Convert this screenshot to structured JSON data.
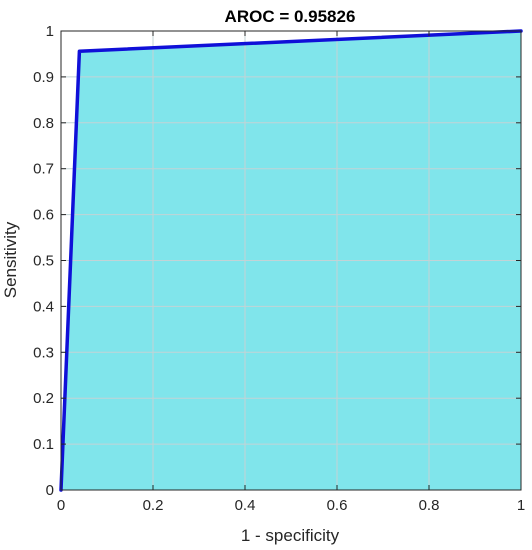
{
  "chart_data": {
    "type": "area",
    "title": "AROC = 0.95826",
    "xlabel": "1 - specificity",
    "ylabel": "Sensitivity",
    "xlim": [
      0,
      1
    ],
    "ylim": [
      0,
      1
    ],
    "x_ticks": [
      0,
      0.2,
      0.4,
      0.6,
      0.8,
      1
    ],
    "x_tick_labels": [
      "0",
      "0.2",
      "0.4",
      "0.6",
      "0.8",
      "1"
    ],
    "y_ticks": [
      0,
      0.1,
      0.2,
      0.3,
      0.4,
      0.5,
      0.6,
      0.7,
      0.8,
      0.9,
      1
    ],
    "y_tick_labels": [
      "0",
      "0.1",
      "0.2",
      "0.3",
      "0.4",
      "0.5",
      "0.6",
      "0.7",
      "0.8",
      "0.9",
      "1"
    ],
    "grid": true,
    "series": [
      {
        "x": [
          0,
          0.04,
          1
        ],
        "y": [
          0,
          0.956,
          1
        ]
      }
    ],
    "colors": {
      "fill": "#80e5eb",
      "line": "#1010d8",
      "grid": "#c3d3d6",
      "axis": "#262626"
    }
  }
}
